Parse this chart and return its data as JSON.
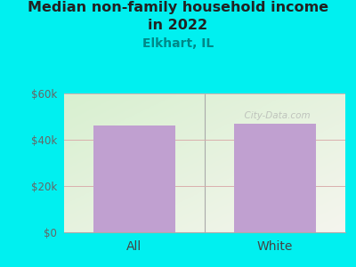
{
  "categories": [
    "All",
    "White"
  ],
  "values": [
    46000,
    47000
  ],
  "bar_color": "#c0a0d0",
  "title_line1": "Median non-family household income",
  "title_line2": "in 2022",
  "subtitle": "Elkhart, IL",
  "title_fontsize": 11.5,
  "subtitle_fontsize": 10,
  "background_color": "#00f0f0",
  "plot_bg_color_topleft": "#d8f0d0",
  "plot_bg_color_bottomright": "#f5f5ee",
  "ylim": [
    0,
    60000
  ],
  "yticks": [
    0,
    20000,
    40000,
    60000
  ],
  "grid_color": "#d8a8a8",
  "watermark": "  City-Data.com",
  "title_color": "#222222",
  "subtitle_color": "#008888",
  "tick_color": "#666666",
  "xlabel_color": "#444444"
}
